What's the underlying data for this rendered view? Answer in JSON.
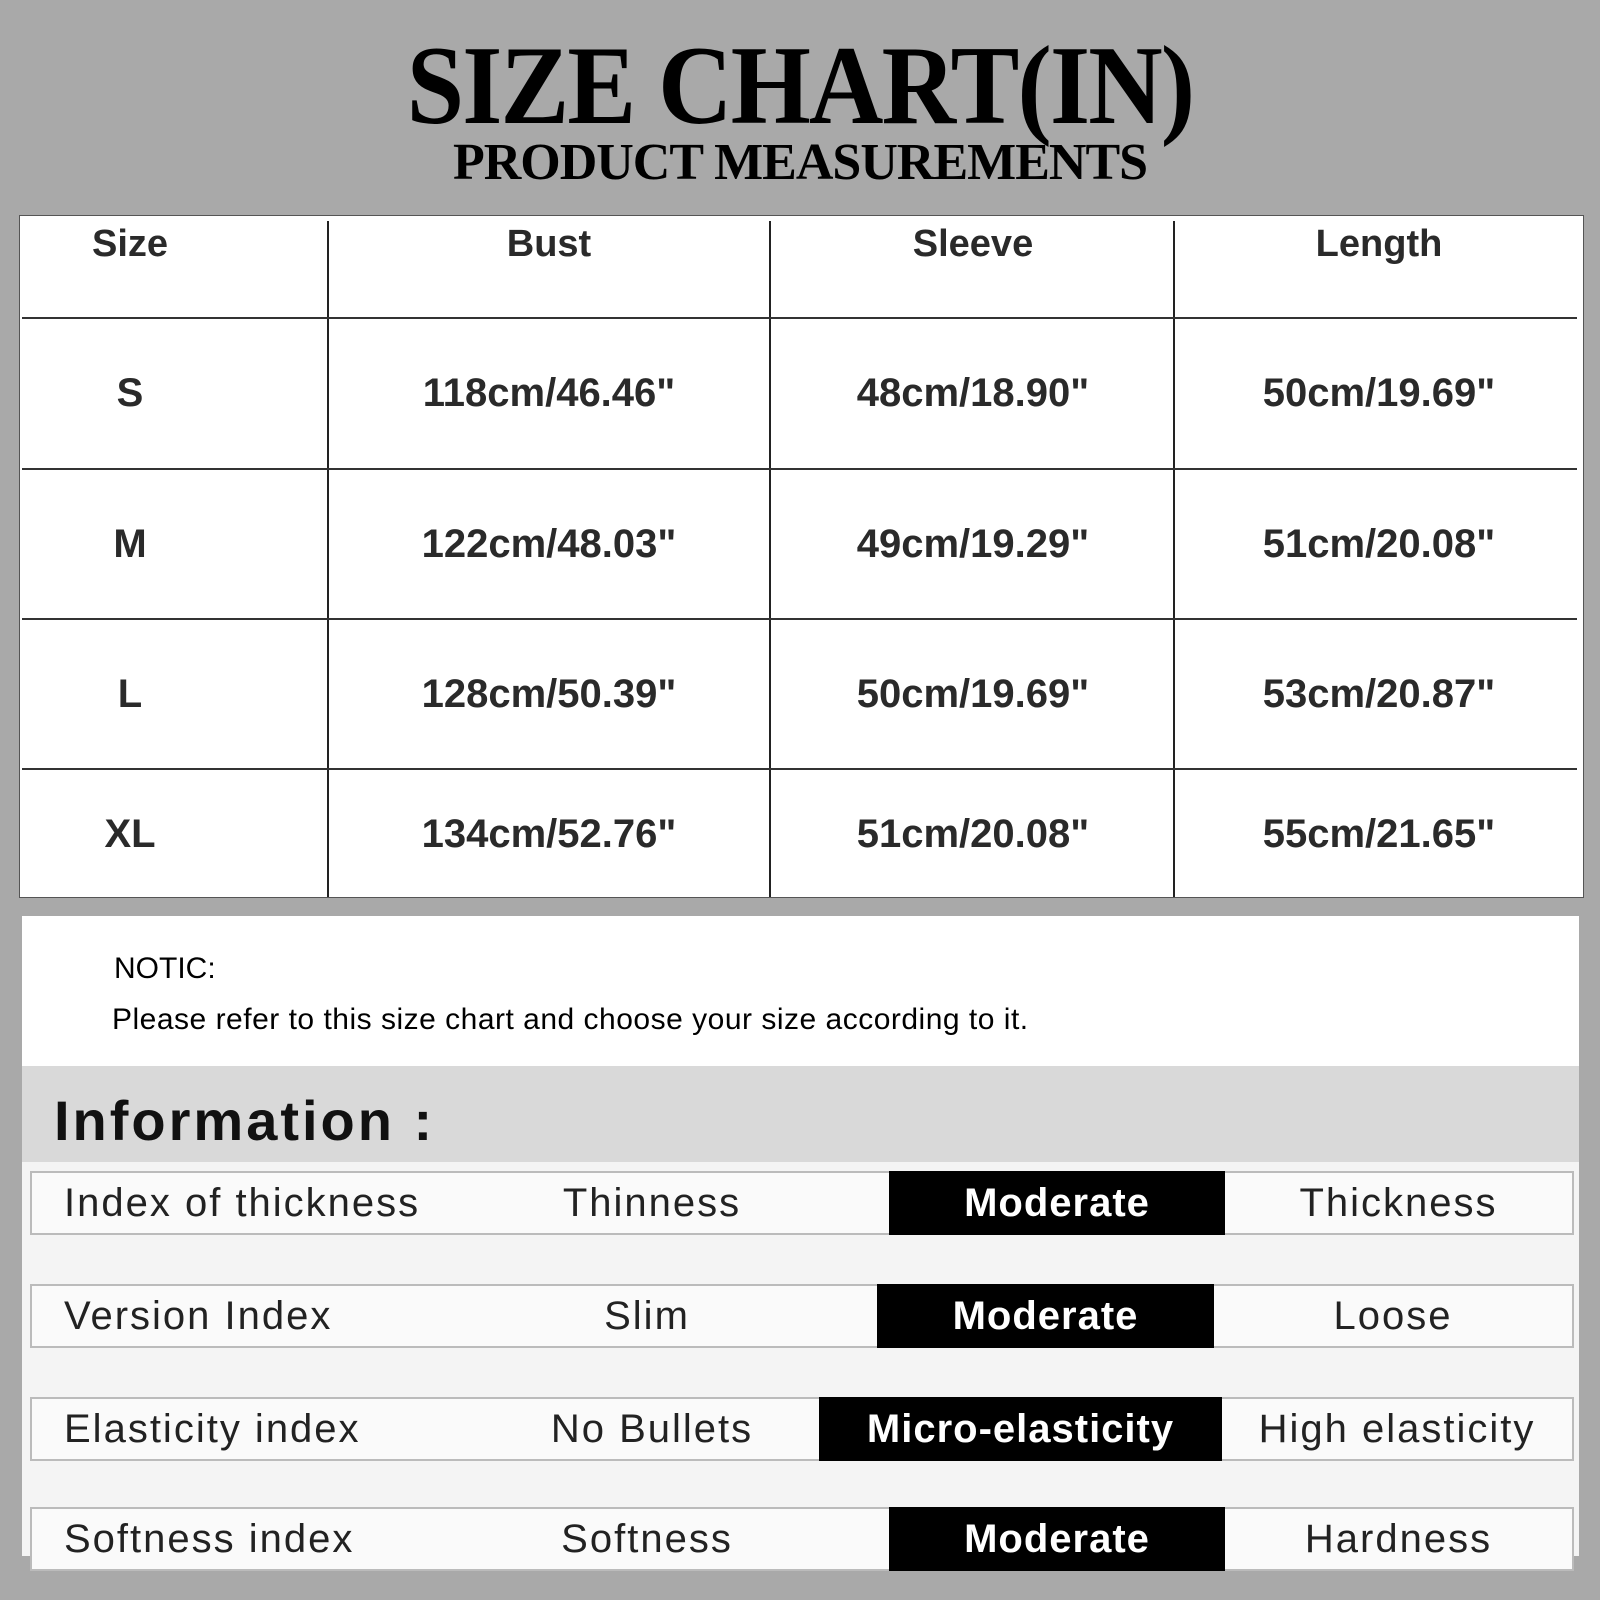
{
  "header": {
    "title": "SIZE CHART(IN)",
    "subtitle": "PRODUCT MEASUREMENTS"
  },
  "table": {
    "columns": [
      "Size",
      "Bust",
      "Sleeve",
      "Length"
    ],
    "rows": [
      [
        "S",
        "118cm/46.46\"",
        "48cm/18.90\"",
        "50cm/19.69\""
      ],
      [
        "M",
        "122cm/48.03\"",
        "49cm/19.29\"",
        "51cm/20.08\""
      ],
      [
        "L",
        "128cm/50.39\"",
        "50cm/19.69\"",
        "53cm/20.87\""
      ],
      [
        "XL",
        "134cm/52.76\"",
        "51cm/20.08\"",
        "55cm/21.65\""
      ]
    ]
  },
  "notice": {
    "title": "NOTIC:",
    "text": "Please refer to this size chart and choose your size according to it."
  },
  "information": {
    "title": "Information :",
    "rows": [
      {
        "label": "Index of thickness",
        "options": [
          "Thinness",
          "Moderate",
          "Thickness"
        ],
        "selected": "Moderate"
      },
      {
        "label": "Version Index",
        "options": [
          "Slim",
          "Moderate",
          "Loose"
        ],
        "selected": "Moderate"
      },
      {
        "label": "Elasticity index",
        "options": [
          "No Bullets",
          "Micro-elasticity",
          "High elasticity"
        ],
        "selected": "Micro-elasticity"
      },
      {
        "label": "Softness index",
        "options": [
          "Softness",
          "Moderate",
          "Hardness"
        ],
        "selected": "Moderate"
      }
    ]
  },
  "colors": {
    "background": "#a9a9a9",
    "selected": "#000000"
  }
}
